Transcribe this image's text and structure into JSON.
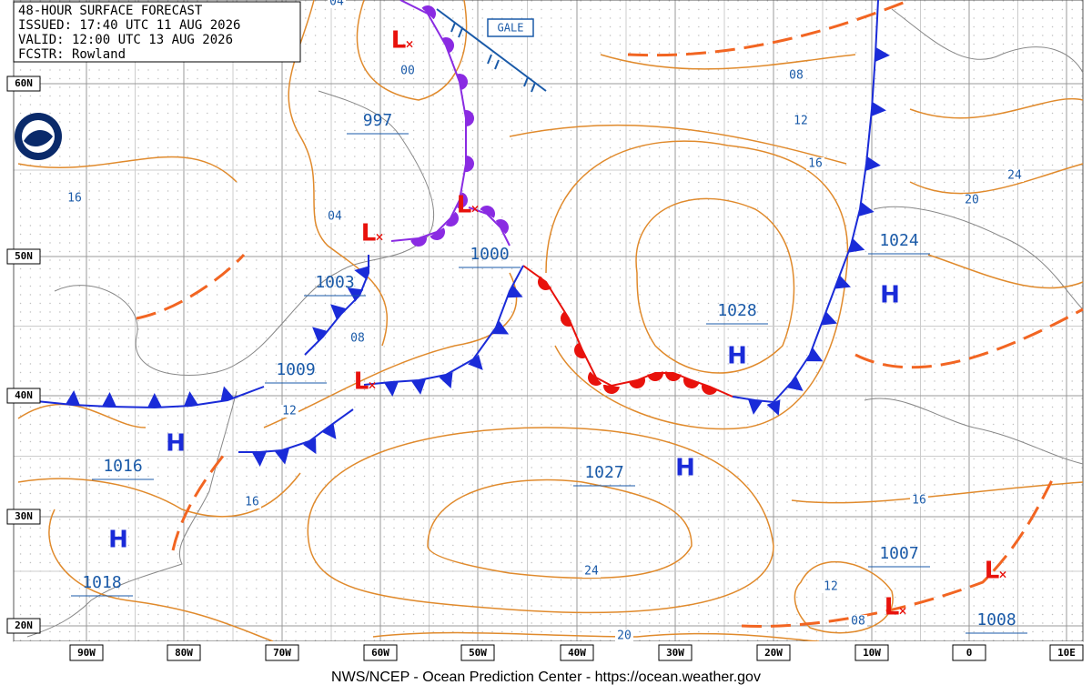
{
  "header": {
    "title": "48-HOUR SURFACE FORECAST",
    "issued": "ISSUED: 17:40 UTC 11 AUG 2026",
    "valid": "VALID: 12:00 UTC 13 AUG 2026",
    "forecaster": "FCSTR: Rowland"
  },
  "latitude_labels": [
    "60N",
    "50N",
    "40N",
    "30N",
    "20N"
  ],
  "longitude_labels": [
    "90W",
    "80W",
    "70W",
    "60W",
    "50W",
    "40W",
    "30W",
    "20W",
    "10W",
    "0",
    "10E"
  ],
  "highs": [
    {
      "symbol": "H",
      "pressure": "1016"
    },
    {
      "symbol": "H",
      "pressure": "1018"
    },
    {
      "symbol": "H",
      "pressure": "1027"
    },
    {
      "symbol": "H",
      "pressure": "1028"
    },
    {
      "symbol": "H",
      "pressure": "1024"
    }
  ],
  "lows": [
    {
      "symbol": "L",
      "pressure": "997"
    },
    {
      "symbol": "L",
      "pressure": "1003"
    },
    {
      "symbol": "L",
      "pressure": "1000"
    },
    {
      "symbol": "L",
      "pressure": "1009"
    },
    {
      "symbol": "L",
      "pressure": "1007"
    },
    {
      "symbol": "L",
      "pressure": "1008"
    }
  ],
  "isobar_labels": [
    "04",
    "00",
    "04",
    "08",
    "12",
    "16",
    "16",
    "08",
    "12",
    "16",
    "20",
    "24",
    "24",
    "20",
    "16",
    "12",
    "08"
  ],
  "warning": "GALE",
  "footer": "NWS/NCEP - Ocean Prediction Center - https://ocean.weather.gov"
}
